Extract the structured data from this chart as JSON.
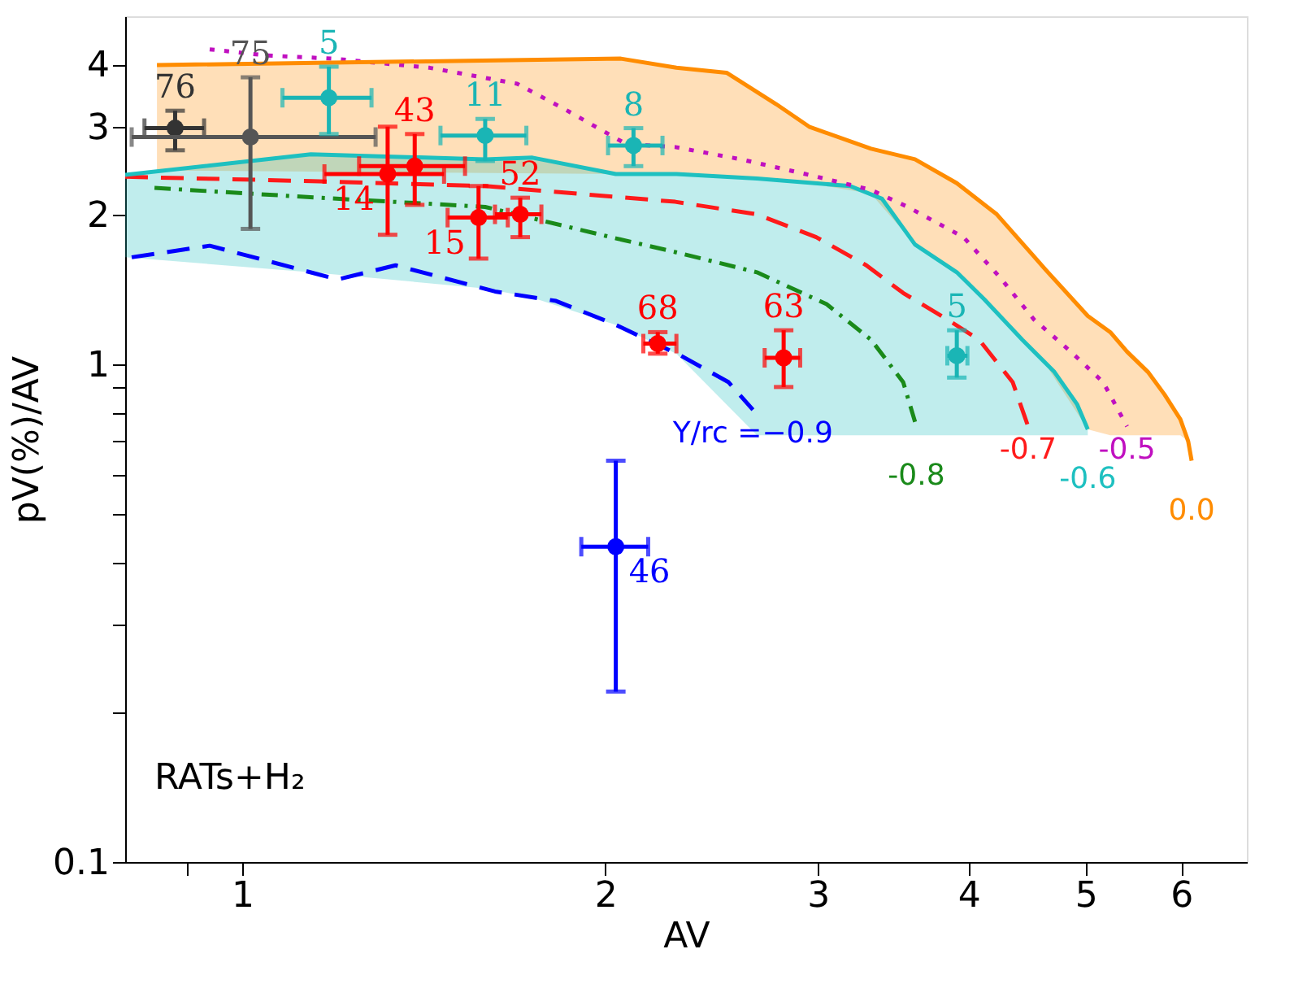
{
  "chart_data": {
    "type": "scatter",
    "xlabel": "AV",
    "ylabel": "pV(%)/AV",
    "log": "xy",
    "grid": false,
    "xlim": [
      0.8,
      6.8
    ],
    "ylim": [
      0.1,
      5.0
    ],
    "xticks": [
      {
        "value": 0.9,
        "label": null
      },
      1,
      2,
      3,
      4,
      5,
      6
    ],
    "yticks": [
      0.1,
      {
        "value": 0.2,
        "label": null
      },
      {
        "value": 0.3,
        "label": null
      },
      {
        "value": 0.4,
        "label": null
      },
      {
        "value": 0.5,
        "label": null
      },
      {
        "value": 0.6,
        "label": null
      },
      {
        "value": 0.7,
        "label": null
      },
      {
        "value": 0.8,
        "label": null
      },
      {
        "value": 0.9,
        "label": null
      },
      1,
      2,
      3,
      4
    ],
    "annotations": [
      "RATs+H₂"
    ],
    "series": [
      {
        "type": "line",
        "name": "Y/rc =−0.9",
        "color": "#0000ff",
        "line_style": "dashed",
        "x": [
          0.81,
          0.94,
          1.2,
          1.34,
          1.62,
          1.82,
          2.04,
          2.31,
          2.53,
          2.65
        ],
        "values": [
          1.64,
          1.73,
          1.48,
          1.58,
          1.4,
          1.34,
          1.2,
          1.04,
          0.92,
          0.81
        ]
      },
      {
        "type": "line",
        "name": "-0.8",
        "color": "#1a8a1a",
        "line_style": "dashdot",
        "x": [
          0.846,
          1.16,
          1.59,
          2.04,
          2.285,
          2.67,
          3.05,
          3.32,
          3.53,
          3.62
        ],
        "values": [
          2.26,
          2.16,
          2.07,
          1.79,
          1.68,
          1.53,
          1.32,
          1.12,
          0.92,
          0.75
        ]
      },
      {
        "type": "line",
        "name": "-0.7",
        "color": "#ff1a1a",
        "line_style": "dashed",
        "x": [
          0.8,
          1.16,
          1.59,
          2.285,
          2.67,
          2.99,
          3.29,
          3.53,
          3.84,
          4.08,
          4.35,
          4.48
        ],
        "values": [
          2.38,
          2.33,
          2.28,
          2.12,
          2.0,
          1.8,
          1.58,
          1.39,
          1.23,
          1.12,
          0.92,
          0.75
        ]
      },
      {
        "type": "line",
        "name": "-0.6",
        "color": "#1ec0c0",
        "line_style": "solid",
        "x": [
          0.8,
          1.14,
          1.59,
          1.74,
          2.04,
          2.29,
          2.67,
          3.19,
          3.39,
          3.61,
          3.91,
          4.12,
          4.43,
          4.71,
          4.92,
          5.02
        ],
        "values": [
          2.4,
          2.64,
          2.58,
          2.6,
          2.41,
          2.41,
          2.36,
          2.28,
          2.15,
          1.74,
          1.53,
          1.35,
          1.12,
          0.965,
          0.83,
          0.74
        ],
        "upper": [
          2.4,
          2.64,
          2.58,
          2.6,
          2.41,
          2.41,
          2.36,
          2.28,
          2.15,
          1.74,
          1.53,
          1.35,
          1.12,
          0.965,
          0.83,
          0.74
        ],
        "lower": [
          1.64,
          1.53,
          1.42,
          1.36,
          1.2,
          1.05,
          0.72,
          0.72,
          0.72,
          0.72,
          0.72,
          0.72,
          0.72,
          0.72,
          0.72,
          0.72
        ]
      },
      {
        "type": "line",
        "name": "-0.5",
        "color": "#c010c0",
        "line_style": "dotted",
        "x": [
          0.94,
          1.05,
          1.19,
          1.43,
          1.69,
          1.86,
          2.08,
          2.285,
          2.59,
          2.93,
          3.32,
          3.56,
          3.96,
          4.25,
          4.53,
          4.86,
          5.17,
          5.41
        ],
        "values": [
          4.29,
          4.17,
          4.11,
          3.94,
          3.66,
          3.23,
          2.77,
          2.73,
          2.58,
          2.41,
          2.24,
          2.07,
          1.8,
          1.49,
          1.23,
          1.06,
          0.92,
          0.75
        ]
      },
      {
        "type": "line",
        "name": "0.0",
        "color": "#ff8c00",
        "line_style": "solid",
        "x": [
          0.85,
          2.06,
          2.29,
          2.52,
          2.77,
          2.95,
          3.32,
          3.61,
          3.91,
          4.22,
          4.63,
          5.02,
          5.24,
          5.41,
          5.63,
          5.81,
          5.99,
          6.08,
          6.12
        ],
        "values": [
          3.99,
          4.11,
          3.94,
          3.85,
          3.33,
          3.0,
          2.71,
          2.58,
          2.31,
          2.0,
          1.55,
          1.25,
          1.16,
          1.06,
          0.965,
          0.87,
          0.775,
          0.7,
          0.64
        ],
        "upper": [
          3.99,
          4.11,
          3.94,
          3.85,
          3.33,
          3.0,
          2.71,
          2.58,
          2.31,
          2.0,
          1.55,
          1.25,
          1.16,
          1.06,
          0.965,
          0.87,
          0.775,
          0.7,
          0.64
        ],
        "lower": [
          2.45,
          2.41,
          2.41,
          2.38,
          2.34,
          2.31,
          2.2,
          1.74,
          1.53,
          1.28,
          1.0,
          0.74,
          0.72,
          0.72,
          0.72,
          0.72,
          0.72,
          0.7,
          0.64
        ]
      },
      {
        "name": "76",
        "marker": "circle",
        "color": "#333333",
        "x": [
          0.88
        ],
        "values": [
          2.98
        ],
        "errors": [
          [
            2.69,
            3.23
          ]
        ],
        "xerrors": [
          [
            0.83,
            0.93
          ]
        ]
      },
      {
        "name": "43",
        "marker": "circle",
        "color": "#ff0000",
        "x": [
          1.39
        ],
        "values": [
          2.5
        ],
        "errors": [
          [
            2.09,
            2.9
          ]
        ],
        "xerrors": [
          [
            1.25,
            1.53
          ]
        ]
      },
      {
        "name": "14",
        "marker": "circle",
        "color": "#ff0000",
        "x": [
          1.32
        ],
        "values": [
          2.41
        ],
        "errors": [
          [
            1.82,
            3.0
          ]
        ],
        "xerrors": [
          [
            1.17,
            1.47
          ]
        ]
      },
      {
        "name": "75",
        "marker": "circle",
        "color": "#555555",
        "x": [
          1.016
        ],
        "values": [
          2.86
        ],
        "errors": [
          [
            1.87,
            3.77
          ]
        ],
        "xerrors": [
          [
            0.81,
            1.29
          ]
        ]
      },
      {
        "name": "15",
        "marker": "circle",
        "color": "#ff0000",
        "x": [
          1.57
        ],
        "values": [
          1.97
        ],
        "errors": [
          [
            1.63,
            2.28
          ]
        ],
        "xerrors": [
          [
            1.48,
            1.66
          ]
        ]
      },
      {
        "name": "5",
        "marker": "circle",
        "color": "#1ab5b5",
        "x": [
          1.18
        ],
        "values": [
          3.43
        ],
        "errors": [
          [
            2.9,
            3.96
          ]
        ],
        "xerrors": [
          [
            1.08,
            1.28
          ]
        ]
      },
      {
        "name": "52",
        "marker": "circle",
        "color": "#ff0000",
        "x": [
          1.7
        ],
        "values": [
          2.0
        ],
        "errors": [
          [
            1.8,
            2.16
          ]
        ],
        "xerrors": [
          [
            1.62,
            1.77
          ]
        ]
      },
      {
        "name": "11",
        "marker": "circle",
        "color": "#1ab5b5",
        "x": [
          1.59
        ],
        "values": [
          2.88
        ],
        "errors": [
          [
            2.56,
            3.11
          ]
        ],
        "xerrors": [
          [
            1.46,
            1.72
          ]
        ]
      },
      {
        "name": "63",
        "marker": "circle",
        "color": "#ff0000",
        "x": [
          2.81
        ],
        "values": [
          1.03
        ],
        "errors": [
          [
            0.9,
            1.17
          ]
        ],
        "xerrors": [
          [
            2.71,
            2.9
          ]
        ]
      },
      {
        "name": "8",
        "marker": "circle",
        "color": "#1ab5b5",
        "x": [
          2.11
        ],
        "values": [
          2.75
        ],
        "errors": [
          [
            2.5,
            2.98
          ]
        ],
        "xerrors": [
          [
            2.01,
            2.23
          ]
        ]
      },
      {
        "name": "46",
        "marker": "circle",
        "color": "#0000ff",
        "x": [
          2.04
        ],
        "values": [
          0.43
        ],
        "errors": [
          [
            0.22,
            0.64
          ]
        ],
        "xerrors": [
          [
            1.91,
            2.17
          ]
        ]
      },
      {
        "name": "5",
        "marker": "circle",
        "color": "#1ab5b5",
        "x": [
          3.91
        ],
        "values": [
          1.04
        ],
        "errors": [
          [
            0.94,
            1.17
          ]
        ],
        "xerrors": [
          [
            3.84,
            3.99
          ]
        ]
      },
      {
        "name": "68",
        "marker": "circle",
        "color": "#ff0000",
        "x": [
          2.21
        ],
        "values": [
          1.1
        ],
        "errors": [
          [
            1.05,
            1.16
          ]
        ],
        "xerrors": [
          [
            2.15,
            2.29
          ]
        ]
      }
    ]
  }
}
